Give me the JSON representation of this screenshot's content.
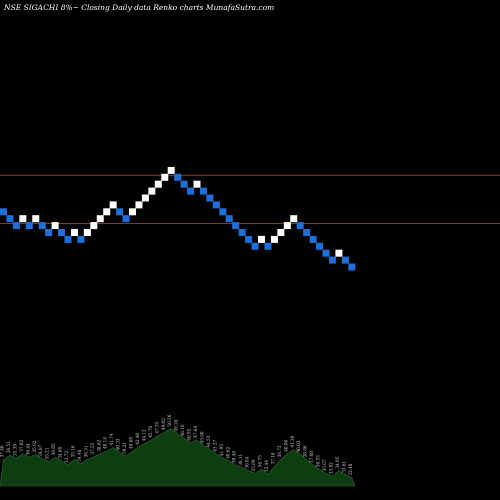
{
  "header": {
    "title": "NSE SIGACHI 8%~ Closing Daily data Renko charts MunafaSutra.com"
  },
  "colors": {
    "background": "#000000",
    "up_brick": "#ffffff",
    "down_brick": "#1e6fd9",
    "level_line": "#b34a3a",
    "volume_area": "#0f3d12",
    "volume_outline": "#2a6a2e"
  },
  "chart_data": {
    "type": "renko",
    "price_levels": [
      {
        "name": "upper-level",
        "row": 13.3
      },
      {
        "name": "lower-level",
        "row": 6.3
      }
    ],
    "bricks": [
      {
        "row": 8,
        "dir": "down"
      },
      {
        "row": 7,
        "dir": "down"
      },
      {
        "row": 6,
        "dir": "down"
      },
      {
        "row": 7,
        "dir": "up"
      },
      {
        "row": 6,
        "dir": "down"
      },
      {
        "row": 7,
        "dir": "up"
      },
      {
        "row": 6,
        "dir": "down"
      },
      {
        "row": 5,
        "dir": "down"
      },
      {
        "row": 6,
        "dir": "up"
      },
      {
        "row": 5,
        "dir": "down"
      },
      {
        "row": 4,
        "dir": "down"
      },
      {
        "row": 5,
        "dir": "up"
      },
      {
        "row": 4,
        "dir": "down"
      },
      {
        "row": 5,
        "dir": "up"
      },
      {
        "row": 6,
        "dir": "up"
      },
      {
        "row": 7,
        "dir": "up"
      },
      {
        "row": 8,
        "dir": "up"
      },
      {
        "row": 9,
        "dir": "up"
      },
      {
        "row": 8,
        "dir": "down"
      },
      {
        "row": 7,
        "dir": "down"
      },
      {
        "row": 8,
        "dir": "up"
      },
      {
        "row": 9,
        "dir": "up"
      },
      {
        "row": 10,
        "dir": "up"
      },
      {
        "row": 11,
        "dir": "up"
      },
      {
        "row": 12,
        "dir": "up"
      },
      {
        "row": 13,
        "dir": "up"
      },
      {
        "row": 14,
        "dir": "up"
      },
      {
        "row": 13,
        "dir": "down"
      },
      {
        "row": 12,
        "dir": "down"
      },
      {
        "row": 11,
        "dir": "down"
      },
      {
        "row": 12,
        "dir": "up"
      },
      {
        "row": 11,
        "dir": "down"
      },
      {
        "row": 10,
        "dir": "down"
      },
      {
        "row": 9,
        "dir": "down"
      },
      {
        "row": 8,
        "dir": "down"
      },
      {
        "row": 7,
        "dir": "down"
      },
      {
        "row": 6,
        "dir": "down"
      },
      {
        "row": 5,
        "dir": "down"
      },
      {
        "row": 4,
        "dir": "down"
      },
      {
        "row": 3,
        "dir": "down"
      },
      {
        "row": 4,
        "dir": "up"
      },
      {
        "row": 3,
        "dir": "down"
      },
      {
        "row": 4,
        "dir": "up"
      },
      {
        "row": 5,
        "dir": "up"
      },
      {
        "row": 6,
        "dir": "up"
      },
      {
        "row": 7,
        "dir": "up"
      },
      {
        "row": 6,
        "dir": "down"
      },
      {
        "row": 5,
        "dir": "down"
      },
      {
        "row": 4,
        "dir": "down"
      },
      {
        "row": 3,
        "dir": "down"
      },
      {
        "row": 2,
        "dir": "down"
      },
      {
        "row": 1,
        "dir": "down"
      },
      {
        "row": 2,
        "dir": "up"
      },
      {
        "row": 1,
        "dir": "down"
      },
      {
        "row": 0,
        "dir": "down"
      }
    ],
    "volume": [
      {
        "value": 38,
        "label": "37.46"
      },
      {
        "value": 44,
        "label": "36.51"
      },
      {
        "value": 40,
        "label": "35.39"
      },
      {
        "value": 46,
        "label": "37.02"
      },
      {
        "value": 41,
        "label": "36.44"
      },
      {
        "value": 45,
        "label": "35.92"
      },
      {
        "value": 39,
        "label": "34.87"
      },
      {
        "value": 35,
        "label": "35.21"
      },
      {
        "value": 41,
        "label": "36.05"
      },
      {
        "value": 36,
        "label": "34.68"
      },
      {
        "value": 30,
        "label": "33.72"
      },
      {
        "value": 38,
        "label": "35.16"
      },
      {
        "value": 32,
        "label": "34.40"
      },
      {
        "value": 38,
        "label": "36.31"
      },
      {
        "value": 42,
        "label": "37.55"
      },
      {
        "value": 46,
        "label": "38.62"
      },
      {
        "value": 50,
        "label": "40.18"
      },
      {
        "value": 55,
        "label": "41.74"
      },
      {
        "value": 48,
        "label": "40.33"
      },
      {
        "value": 43,
        "label": "39.21"
      },
      {
        "value": 50,
        "label": "40.88"
      },
      {
        "value": 56,
        "label": "42.40"
      },
      {
        "value": 61,
        "label": "44.12"
      },
      {
        "value": 66,
        "label": "45.70"
      },
      {
        "value": 72,
        "label": "47.35"
      },
      {
        "value": 77,
        "label": "49.02"
      },
      {
        "value": 82,
        "label": "50.56"
      },
      {
        "value": 75,
        "label": "49.28"
      },
      {
        "value": 68,
        "label": "48.10"
      },
      {
        "value": 62,
        "label": "46.92"
      },
      {
        "value": 66,
        "label": "47.64"
      },
      {
        "value": 58,
        "label": "45.80"
      },
      {
        "value": 52,
        "label": "44.53"
      },
      {
        "value": 46,
        "label": "43.27"
      },
      {
        "value": 40,
        "label": "41.95"
      },
      {
        "value": 36,
        "label": "40.62"
      },
      {
        "value": 30,
        "label": "39.40"
      },
      {
        "value": 26,
        "label": "38.11"
      },
      {
        "value": 22,
        "label": "36.84"
      },
      {
        "value": 18,
        "label": "35.69"
      },
      {
        "value": 24,
        "label": "36.75"
      },
      {
        "value": 17,
        "label": "35.44"
      },
      {
        "value": 28,
        "label": "37.18"
      },
      {
        "value": 38,
        "label": "38.73"
      },
      {
        "value": 46,
        "label": "40.06"
      },
      {
        "value": 52,
        "label": "41.39"
      },
      {
        "value": 45,
        "label": "40.02"
      },
      {
        "value": 38,
        "label": "38.86"
      },
      {
        "value": 30,
        "label": "37.60"
      },
      {
        "value": 24,
        "label": "36.33"
      },
      {
        "value": 18,
        "label": "35.07"
      },
      {
        "value": 14,
        "label": "33.82"
      },
      {
        "value": 22,
        "label": "34.95"
      },
      {
        "value": 16,
        "label": "33.61"
      },
      {
        "value": 12,
        "label": "32.48"
      }
    ]
  }
}
